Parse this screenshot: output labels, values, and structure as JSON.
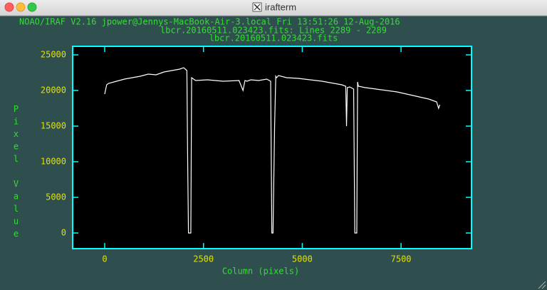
{
  "window": {
    "title": "irafterm"
  },
  "chart_data": {
    "type": "line",
    "header_lines": [
      "NOAO/IRAF V2.16 jpower@Jennys-MacBook-Air-3.local Fri 13:51:26 12-Aug-2016",
      "lbcr.20160511.023423.fits: Lines 2289 - 2289",
      "lbcr.20160511.023423.fits"
    ],
    "xlabel": "Column (pixels)",
    "ylabel": "Pixel Value",
    "x": [
      0,
      50,
      100,
      300,
      500,
      700,
      900,
      1100,
      1300,
      1500,
      1700,
      1900,
      2000,
      2080,
      2100,
      2120,
      2180,
      2200,
      2300,
      2600,
      3000,
      3400,
      3500,
      3550,
      3600,
      3700,
      3900,
      4100,
      4200,
      4230,
      4260,
      4300,
      4330,
      4350,
      4400,
      4600,
      4900,
      5200,
      5500,
      5800,
      6000,
      6100,
      6120,
      6140,
      6200,
      6300,
      6330,
      6380,
      6400,
      6420,
      6600,
      7000,
      7400,
      7800,
      8200,
      8400,
      8450,
      8480
    ],
    "values": [
      19500,
      20800,
      21000,
      21300,
      21600,
      21800,
      22000,
      22300,
      22200,
      22600,
      22800,
      23000,
      23200,
      22800,
      10000,
      0,
      0,
      21800,
      21400,
      21500,
      21300,
      21400,
      20000,
      21400,
      21300,
      21500,
      21400,
      21600,
      21300,
      0,
      0,
      15000,
      22000,
      21800,
      22100,
      21800,
      21700,
      21500,
      21300,
      21000,
      20800,
      20600,
      15000,
      20400,
      20500,
      20200,
      0,
      0,
      21200,
      20600,
      20400,
      20100,
      19800,
      19300,
      18800,
      18400,
      17500,
      18000
    ],
    "color": "#ffffff",
    "xlim": [
      -811,
      9283
    ],
    "xticks": [
      0,
      2500,
      5000,
      7500
    ],
    "ylim": [
      -2200,
      26200
    ],
    "yticks": [
      0,
      5000,
      10000,
      15000,
      20000,
      25000
    ]
  }
}
